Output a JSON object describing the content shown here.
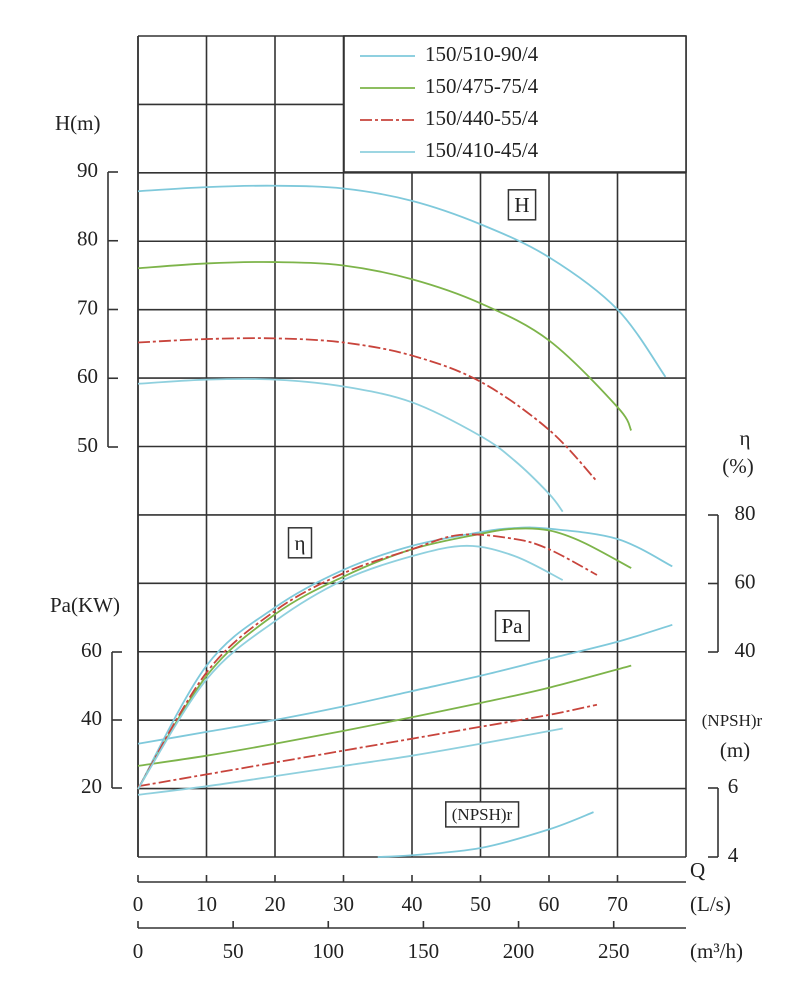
{
  "chart_data": {
    "type": "line",
    "x_label": "Q",
    "x_unit": "(L/s)",
    "xlim": [
      0,
      80
    ],
    "xticks": [
      0,
      10,
      20,
      30,
      40,
      50,
      60,
      70
    ],
    "x2_unit": "(m³/h)",
    "x2lim": [
      0,
      288
    ],
    "x2ticks": [
      0,
      50,
      100,
      150,
      200,
      250
    ],
    "grid": true,
    "axes": {
      "H": {
        "label": "H(m)",
        "annotation": "H",
        "lim": [
          50,
          90
        ],
        "ticks": [
          50,
          60,
          70,
          80,
          90
        ]
      },
      "eta": {
        "label": "η",
        "unit": "(%)",
        "annotation": "η",
        "lim": [
          40,
          80
        ],
        "ticks": [
          40,
          60,
          80
        ]
      },
      "Pa": {
        "label": "Pa(KW)",
        "annotation": "Pa",
        "lim": [
          20,
          60
        ],
        "ticks": [
          20,
          40,
          60
        ]
      },
      "NPSH": {
        "label": "(NPSH)r",
        "unit": "(m)",
        "annotation": "(NPSH)r",
        "lim": [
          4,
          6
        ],
        "ticks": [
          4,
          6
        ]
      }
    },
    "series": [
      {
        "name": "150/510-90/4",
        "color": "#7fc9db",
        "dash": "solid",
        "curves": {
          "H": {
            "x": [
              0,
              10,
              20,
              30,
              40,
              50,
              60,
              70,
              77
            ],
            "values": [
              87.2,
              87.8,
              88,
              87.6,
              85.8,
              82.4,
              77.6,
              70,
              60.2
            ]
          },
          "eta": {
            "x": [
              0,
              10,
              20,
              30,
              40,
              50,
              55,
              60,
              70,
              78
            ],
            "values": [
              0,
              36,
              53,
              64,
              71,
              75,
              76.2,
              76,
              73,
              65
            ]
          },
          "Pa": {
            "x": [
              0,
              10,
              20,
              30,
              40,
              50,
              60,
              70,
              78
            ],
            "values": [
              33,
              36.5,
              40,
              44,
              48.5,
              53,
              58,
              63,
              68
            ]
          },
          "NPSH": {
            "x": [
              35,
              40,
              50,
              60,
              66.5
            ],
            "values": [
              4,
              4.05,
              4.26,
              4.8,
              5.3
            ]
          }
        }
      },
      {
        "name": "150/475-75/4",
        "color": "#7db44a",
        "dash": "solid",
        "curves": {
          "H": {
            "x": [
              0,
              10,
              20,
              30,
              40,
              50,
              60,
              70,
              72
            ],
            "values": [
              76,
              76.7,
              76.9,
              76.4,
              74.4,
              70.9,
              65.5,
              55.8,
              52.4
            ]
          },
          "eta": {
            "x": [
              0,
              10,
              20,
              30,
              40,
              50,
              55,
              60,
              65,
              72
            ],
            "values": [
              0,
              33,
              51,
              62,
              70,
              74.5,
              76,
              75.5,
              72,
              64.5
            ]
          },
          "Pa": {
            "x": [
              0,
              10,
              20,
              30,
              40,
              50,
              60,
              72
            ],
            "values": [
              26.5,
              29.5,
              33,
              36.8,
              40.8,
              45,
              49.5,
              56
            ]
          }
        }
      },
      {
        "name": "150/440-55/4",
        "color": "#c8443c",
        "dash": "dashdot",
        "curves": {
          "H": {
            "x": [
              0,
              10,
              20,
              30,
              40,
              50,
              60,
              67
            ],
            "values": [
              65.2,
              65.7,
              65.8,
              65.2,
              63.3,
              59.5,
              52.5,
              45
            ]
          },
          "eta": {
            "x": [
              0,
              10,
              20,
              30,
              40,
              47,
              55,
              60,
              67
            ],
            "values": [
              0,
              34,
              52,
              63,
              70,
              74.2,
              73,
              70,
              62.5
            ]
          },
          "Pa": {
            "x": [
              0,
              10,
              20,
              30,
              40,
              50,
              60,
              67
            ],
            "values": [
              20.5,
              24,
              27.5,
              31,
              34.5,
              38,
              41.5,
              44.5
            ]
          }
        }
      },
      {
        "name": "150/410-45/4",
        "color": "#8fd0de",
        "dash": "solid",
        "curves": {
          "H": {
            "x": [
              0,
              10,
              20,
              30,
              40,
              50,
              55,
              60,
              62
            ],
            "values": [
              59.2,
              59.8,
              59.8,
              58.8,
              56.5,
              51.6,
              48,
              43.2,
              40.6
            ]
          },
          "eta": {
            "x": [
              0,
              10,
              20,
              30,
              40,
              48,
              55,
              62
            ],
            "values": [
              0,
              32,
              49,
              61,
              68,
              71,
              68,
              61
            ]
          },
          "Pa": {
            "x": [
              0,
              10,
              20,
              30,
              40,
              50,
              62
            ],
            "values": [
              18,
              20.5,
              23.5,
              26.5,
              29.5,
              33,
              37.5
            ]
          }
        }
      }
    ]
  }
}
